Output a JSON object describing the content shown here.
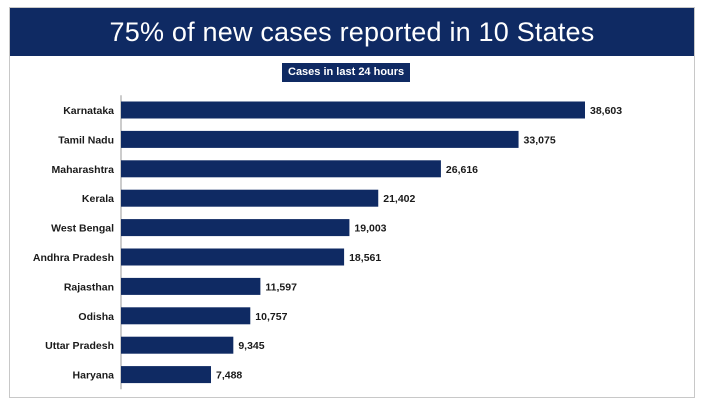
{
  "header": {
    "title": "75% of new cases reported in 10 States"
  },
  "colors": {
    "primary": "#0f2a63",
    "text": "#1a1a1a",
    "background": "#ffffff"
  },
  "chart_data": {
    "type": "bar",
    "orientation": "horizontal",
    "title": "Cases in last 24 hours",
    "xlabel": "",
    "ylabel": "",
    "grid": false,
    "categories": [
      "Karnataka",
      "Tamil Nadu",
      "Maharashtra",
      "Kerala",
      "West Bengal",
      "Andhra Pradesh",
      "Rajasthan",
      "Odisha",
      "Uttar Pradesh",
      "Haryana"
    ],
    "values": [
      38603,
      33075,
      26616,
      21402,
      19003,
      18561,
      11597,
      10757,
      9345,
      7488
    ],
    "value_labels": [
      "38,603",
      "33,075",
      "26,616",
      "21,402",
      "19,003",
      "18,561",
      "11,597",
      "10,757",
      "9,345",
      "7,488"
    ],
    "xlim": [
      0,
      38603
    ]
  }
}
